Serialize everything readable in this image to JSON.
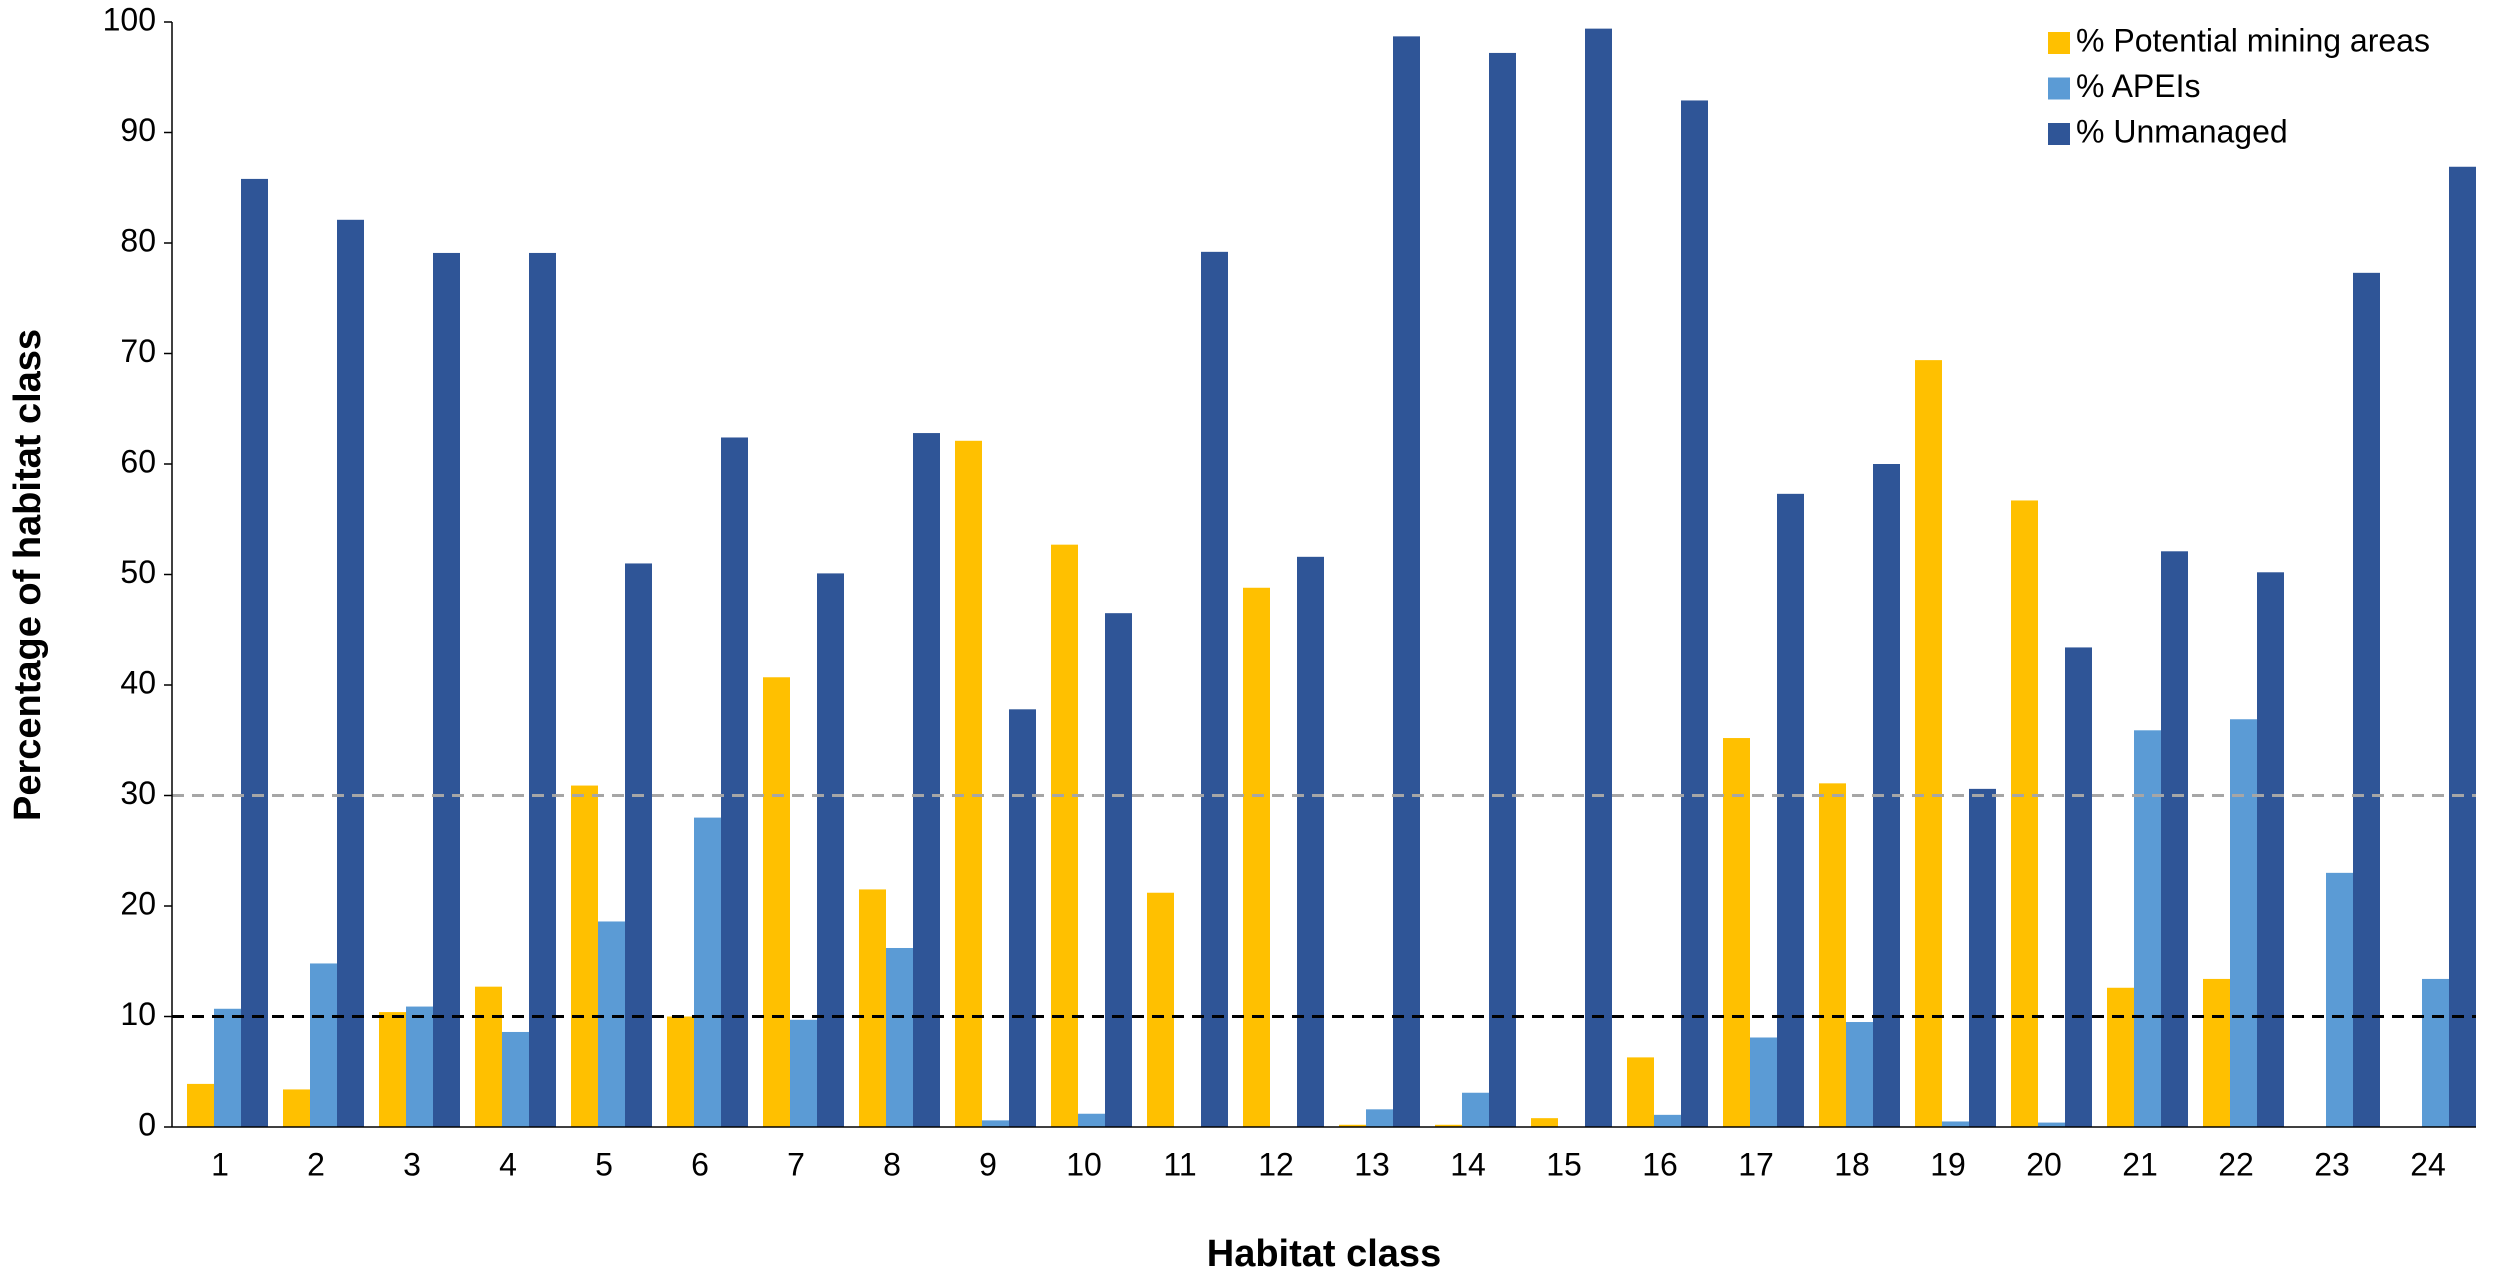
{
  "chart_data": {
    "type": "bar",
    "x_label": "Habitat class",
    "y_label": "Percentage of habitat class",
    "categories": [
      "1",
      "2",
      "3",
      "4",
      "5",
      "6",
      "7",
      "8",
      "9",
      "10",
      "11",
      "12",
      "13",
      "14",
      "15",
      "16",
      "17",
      "18",
      "19",
      "20",
      "21",
      "22",
      "23",
      "24"
    ],
    "series": [
      {
        "name": "% Potential mining areas",
        "color": "#FFC000",
        "values": [
          3.9,
          3.4,
          10.4,
          12.7,
          30.9,
          10.0,
          40.7,
          21.5,
          62.1,
          52.7,
          21.2,
          48.8,
          0.2,
          0.2,
          0.8,
          6.3,
          35.2,
          31.1,
          69.4,
          56.7,
          12.6,
          13.4,
          0,
          0
        ]
      },
      {
        "name": "% APEIs",
        "color": "#5B9BD5",
        "values": [
          10.7,
          14.8,
          10.9,
          8.6,
          18.6,
          28.0,
          9.7,
          16.2,
          0.6,
          1.2,
          0,
          0,
          1.6,
          3.1,
          0,
          1.1,
          8.1,
          9.5,
          0.5,
          0.4,
          35.9,
          36.9,
          23.0,
          13.4
        ]
      },
      {
        "name": "% Unmanaged",
        "color": "#2F5597",
        "values": [
          85.8,
          82.1,
          79.1,
          79.1,
          51.0,
          62.4,
          50.1,
          62.8,
          37.8,
          46.5,
          79.2,
          51.6,
          98.7,
          97.2,
          99.4,
          92.9,
          57.3,
          60.0,
          30.6,
          43.4,
          52.1,
          50.2,
          77.3,
          86.9
        ]
      }
    ],
    "ylim": [
      0,
      100
    ],
    "yticks": [
      0,
      10,
      20,
      30,
      40,
      50,
      60,
      70,
      80,
      90,
      100
    ],
    "grid": false,
    "legend": "top-right",
    "reference_lines": [
      {
        "value": 10,
        "color": "#000000"
      },
      {
        "value": 30,
        "color": "#A6A6A6"
      }
    ]
  }
}
